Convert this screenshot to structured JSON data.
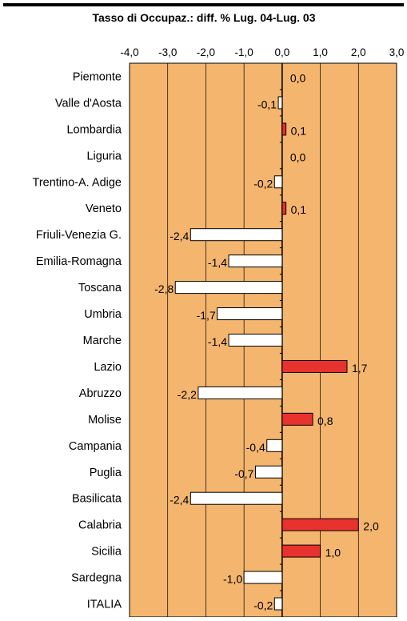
{
  "chart_data": {
    "type": "bar",
    "orientation": "horizontal",
    "title": "Tasso di Occupaz.: diff. % Lug. 04-Lug. 03",
    "xlim": [
      -4.0,
      3.0
    ],
    "x_ticks": [
      -4.0,
      -3.0,
      -2.0,
      -1.0,
      0.0,
      1.0,
      2.0,
      3.0
    ],
    "x_tick_labels": [
      "-4,0",
      "-3,0",
      "-2,0",
      "-1,0",
      "0,0",
      "1,0",
      "2,0",
      "3,0"
    ],
    "axis_position": "top",
    "grid": true,
    "legend": "none",
    "categories": [
      "Piemonte",
      "Valle d'Aosta",
      "Lombardia",
      "Liguria",
      "Trentino-A. Adige",
      "Veneto",
      "Friuli-Venezia G.",
      "Emilia-Romagna",
      "Toscana",
      "Umbria",
      "Marche",
      "Lazio",
      "Abruzzo",
      "Molise",
      "Campania",
      "Puglia",
      "Basilicata",
      "Calabria",
      "Sicilia",
      "Sardegna",
      "ITALIA"
    ],
    "values": [
      0.0,
      -0.1,
      0.1,
      0.0,
      -0.2,
      0.1,
      -2.4,
      -1.4,
      -2.8,
      -1.7,
      -1.4,
      1.7,
      -2.2,
      0.8,
      -0.4,
      -0.7,
      -2.4,
      2.0,
      1.0,
      -1.0,
      -0.2
    ],
    "value_labels": [
      "0,0",
      "-0,1",
      "0,1",
      "0,0",
      "-0,2",
      "0,1",
      "-2,4",
      "-1,4",
      "-2,8",
      "-1,7",
      "-1,4",
      "1,7",
      "-2,2",
      "0,8",
      "-0,4",
      "-0,7",
      "-2,4",
      "2,0",
      "1,0",
      "-1,0",
      "-0,2"
    ],
    "colors": {
      "plot_background": "#f4b56e",
      "positive_bar": "#e8322d",
      "negative_bar": "#ffffff",
      "bar_outline": "#000000",
      "gridline": "#000000"
    }
  }
}
